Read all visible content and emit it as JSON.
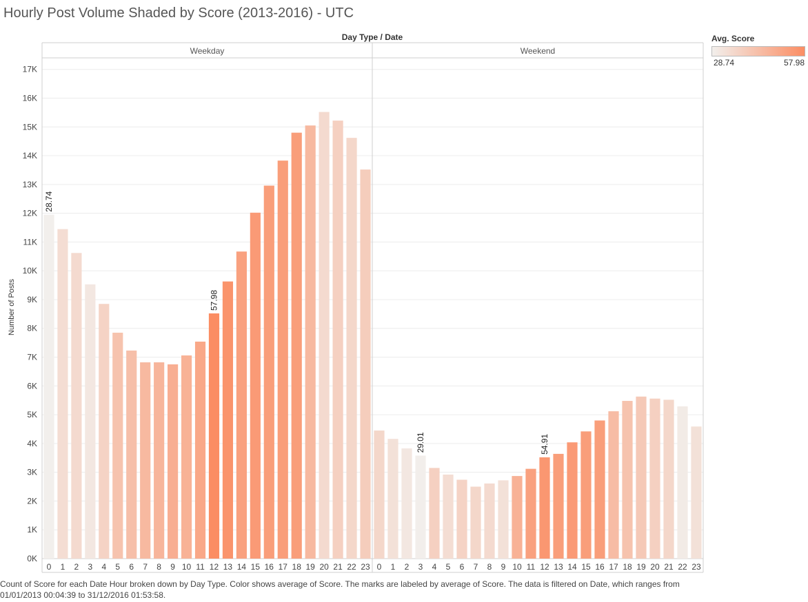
{
  "chart_data": {
    "type": "bar",
    "title": "Hourly Post Volume Shaded by Score (2013-2016) - UTC",
    "header_label": "Day Type  /  Date",
    "ylabel": "Number of Posts",
    "ylim": [
      0,
      17400
    ],
    "yticks": [
      {
        "value": 0,
        "label": "0K"
      },
      {
        "value": 1000,
        "label": "1K"
      },
      {
        "value": 2000,
        "label": "2K"
      },
      {
        "value": 3000,
        "label": "3K"
      },
      {
        "value": 4000,
        "label": "4K"
      },
      {
        "value": 5000,
        "label": "5K"
      },
      {
        "value": 6000,
        "label": "6K"
      },
      {
        "value": 7000,
        "label": "7K"
      },
      {
        "value": 8000,
        "label": "8K"
      },
      {
        "value": 9000,
        "label": "9K"
      },
      {
        "value": 10000,
        "label": "10K"
      },
      {
        "value": 11000,
        "label": "11K"
      },
      {
        "value": 12000,
        "label": "12K"
      },
      {
        "value": 13000,
        "label": "13K"
      },
      {
        "value": 14000,
        "label": "14K"
      },
      {
        "value": 15000,
        "label": "15K"
      },
      {
        "value": 16000,
        "label": "16K"
      },
      {
        "value": 17000,
        "label": "17K"
      }
    ],
    "grid": true,
    "categories": [
      "0",
      "1",
      "2",
      "3",
      "4",
      "5",
      "6",
      "7",
      "8",
      "9",
      "10",
      "11",
      "12",
      "13",
      "14",
      "15",
      "16",
      "17",
      "18",
      "19",
      "20",
      "21",
      "22",
      "23"
    ],
    "panels": [
      {
        "name": "Weekday",
        "values": [
          11950,
          11450,
          10620,
          9530,
          8850,
          7850,
          7230,
          6820,
          6820,
          6750,
          7060,
          7540,
          8520,
          9630,
          10670,
          12020,
          12960,
          13830,
          14800,
          15050,
          15520,
          15220,
          14620,
          13520
        ],
        "scores": [
          28.74,
          34,
          35,
          31,
          37,
          42,
          43,
          45,
          46,
          48,
          47,
          50,
          57.98,
          56,
          52,
          54,
          53,
          53,
          53,
          45,
          35,
          38,
          36,
          39
        ],
        "labels": [
          {
            "index": 0,
            "text": "28.74"
          },
          {
            "index": 12,
            "text": "57.98"
          }
        ]
      },
      {
        "name": "Weekend",
        "values": [
          4450,
          4160,
          3830,
          3580,
          3150,
          2920,
          2740,
          2500,
          2610,
          2720,
          2870,
          3120,
          3520,
          3640,
          4040,
          4420,
          4800,
          5120,
          5480,
          5630,
          5560,
          5520,
          5290,
          4590
        ],
        "scores": [
          36,
          33,
          31,
          29.01,
          38,
          34,
          37,
          36,
          35,
          33,
          47,
          52,
          54.91,
          53,
          54,
          53,
          53,
          44,
          42,
          40,
          38,
          36,
          30,
          33
        ],
        "labels": [
          {
            "index": 3,
            "text": "29.01"
          },
          {
            "index": 12,
            "text": "54.91"
          }
        ]
      }
    ],
    "color_legend": {
      "title": "Avg. Score",
      "min": 28.74,
      "max": 57.98,
      "min_label": "28.74",
      "max_label": "57.98",
      "low_color": "#f2efec",
      "high_color": "#fb8d63"
    },
    "footnote": "Count of Score for each Date Hour broken down by Day Type.  Color shows average of Score.  The marks are labeled by average of Score. The data is filtered on Date, which ranges from 01/01/2013 00:04:39 to 31/12/2016 01:53:58."
  }
}
